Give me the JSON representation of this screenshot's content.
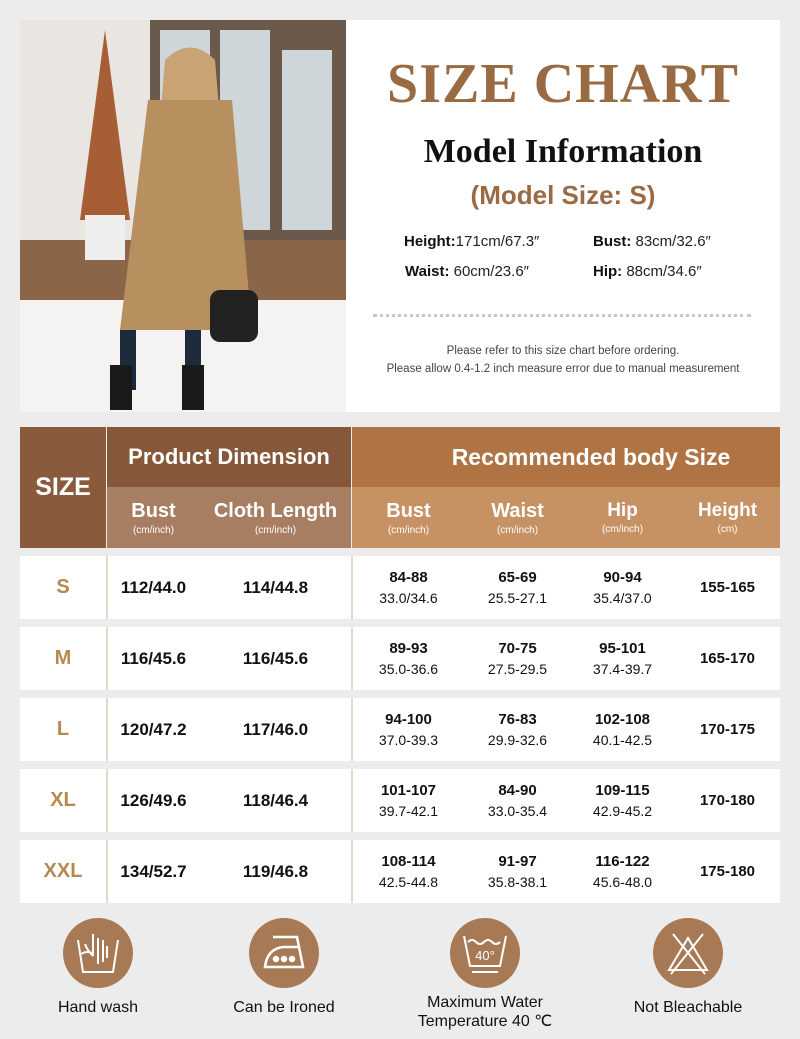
{
  "header": {
    "title": "SIZE CHART",
    "subtitle": "Model Information",
    "model_size": "(Model Size: S)"
  },
  "model": [
    {
      "label": "Height:",
      "value": "171cm/67.3″"
    },
    {
      "label": "Bust:",
      "value": " 83cm/32.6″"
    },
    {
      "label": "Waist:",
      "value": " 60cm/23.6″"
    },
    {
      "label": "Hip:",
      "value": " 88cm/34.6″"
    }
  ],
  "notes": [
    "Please refer to this size chart before ordering.",
    "Please allow 0.4-1.2 inch measure error due to manual measurement"
  ],
  "table": {
    "size_header": "SIZE",
    "group1": "Product Dimension",
    "group2": "Recommended body Size",
    "columns": [
      {
        "label": "Bust",
        "unit": "(cm/inch)"
      },
      {
        "label": "Cloth Length",
        "unit": "(cm/inch)"
      },
      {
        "label": "Bust",
        "unit": "(cm/inch)"
      },
      {
        "label": "Waist",
        "unit": "(cm/inch)"
      },
      {
        "label": "Hip",
        "unit": "(cm/inch)"
      },
      {
        "label": "Height",
        "unit": "(cm)"
      }
    ],
    "rows": [
      {
        "size": "S",
        "bust": "112/44.0",
        "length": "114/44.8",
        "rbust": [
          "84-88",
          "33.0/34.6"
        ],
        "waist": [
          "65-69",
          "25.5-27.1"
        ],
        "hip": [
          "90-94",
          "35.4/37.0"
        ],
        "height": "155-165"
      },
      {
        "size": "M",
        "bust": "116/45.6",
        "length": "116/45.6",
        "rbust": [
          "89-93",
          "35.0-36.6"
        ],
        "waist": [
          "70-75",
          "27.5-29.5"
        ],
        "hip": [
          "95-101",
          "37.4-39.7"
        ],
        "height": "165-170"
      },
      {
        "size": "L",
        "bust": "120/47.2",
        "length": "117/46.0",
        "rbust": [
          "94-100",
          "37.0-39.3"
        ],
        "waist": [
          "76-83",
          "29.9-32.6"
        ],
        "hip": [
          "102-108",
          "40.1-42.5"
        ],
        "height": "170-175"
      },
      {
        "size": "XL",
        "bust": "126/49.6",
        "length": "118/46.4",
        "rbust": [
          "101-107",
          "39.7-42.1"
        ],
        "waist": [
          "84-90",
          "33.0-35.4"
        ],
        "hip": [
          "109-115",
          "42.9-45.2"
        ],
        "height": "170-180"
      },
      {
        "size": "XXL",
        "bust": "134/52.7",
        "length": "119/46.8",
        "rbust": [
          "108-114",
          "42.5-44.8"
        ],
        "waist": [
          "91-97",
          "35.8-38.1"
        ],
        "hip": [
          "116-122",
          "45.6-48.0"
        ],
        "height": "175-180"
      }
    ]
  },
  "care": [
    {
      "icon": "hand-wash-icon",
      "label": "Hand wash"
    },
    {
      "icon": "iron-icon",
      "label": "Can be Ironed"
    },
    {
      "icon": "wash-40-icon",
      "label": "Maximum Water Temperature 40 ℃",
      "badge": "40°"
    },
    {
      "icon": "no-bleach-icon",
      "label": "Not Bleachable"
    }
  ],
  "colors": {
    "accent": "#9a6a43",
    "header_dark": "#87573a",
    "header_light": "#b07444",
    "sub_dark": "#a87e62",
    "sub_light": "#c69264",
    "size_text": "#b8894f",
    "icon_bg": "#a77a55"
  }
}
